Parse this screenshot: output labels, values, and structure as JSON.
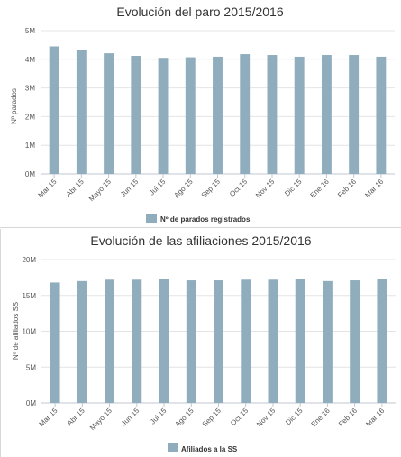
{
  "colors": {
    "bar": "#8fadbc",
    "grid": "#e4e4e4",
    "axis": "#c0c8d0"
  },
  "chart_data": [
    {
      "type": "bar",
      "title": "Evolución del paro 2015/2016",
      "xlabel": "",
      "ylabel": "Nº parados",
      "categories": [
        "Mar 15",
        "Abr 15",
        "Mayo 15",
        "Jun 15",
        "Jul 15",
        "Ago 15",
        "Sep 15",
        "Oct 15",
        "Nov 15",
        "Dic 15",
        "Ene 16",
        "Feb 16",
        "Mar 16"
      ],
      "series": [
        {
          "name": "Nº de parados registrados",
          "values": [
            4.45,
            4.33,
            4.21,
            4.12,
            4.05,
            4.07,
            4.09,
            4.18,
            4.15,
            4.09,
            4.15,
            4.15,
            4.09
          ]
        }
      ],
      "ylim": [
        0,
        5
      ],
      "yticks": [
        "0M",
        "1M",
        "2M",
        "3M",
        "4M",
        "5M"
      ],
      "grid": true,
      "legend": "bottom-center"
    },
    {
      "type": "bar",
      "title": "Evolución de las afiliaciones 2015/2016",
      "xlabel": "",
      "ylabel": "Nº de afiliados SS",
      "categories": [
        "Mar 15",
        "Abr 15",
        "Mayo 15",
        "Jun 15",
        "Jul 15",
        "Ago 15",
        "Sep 15",
        "Oct 15",
        "Nov 15",
        "Dic 15",
        "Ene 16",
        "Feb 16",
        "Mar 16"
      ],
      "series": [
        {
          "name": "Afiliados a la SS",
          "values": [
            16.8,
            17.0,
            17.2,
            17.2,
            17.3,
            17.1,
            17.1,
            17.2,
            17.2,
            17.3,
            17.0,
            17.1,
            17.3
          ]
        }
      ],
      "ylim": [
        0,
        20
      ],
      "yticks": [
        "0M",
        "5M",
        "10M",
        "15M",
        "20M"
      ],
      "grid": true,
      "legend": "bottom-center"
    }
  ]
}
